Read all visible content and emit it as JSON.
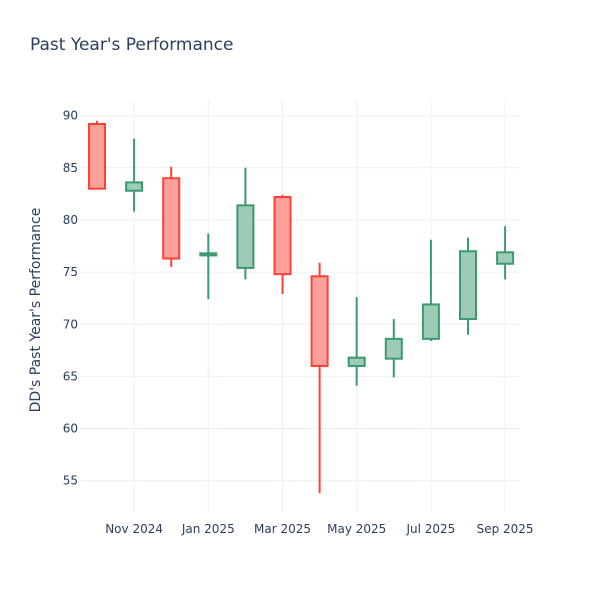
{
  "chart_data": {
    "type": "candlestick",
    "title": "Past Year's Performance",
    "xlabel": "",
    "ylabel": "DD's Past Year's Performance",
    "ylim": [
      52,
      91.5
    ],
    "yticks": [
      55,
      60,
      65,
      70,
      75,
      80,
      85,
      90
    ],
    "xticks": [
      {
        "label": "Nov 2024",
        "index": 1
      },
      {
        "label": "Jan 2025",
        "index": 3
      },
      {
        "label": "Mar 2025",
        "index": 5
      },
      {
        "label": "May 2025",
        "index": 7
      },
      {
        "label": "Jul 2025",
        "index": 9
      },
      {
        "label": "Sep 2025",
        "index": 11
      }
    ],
    "grid": true,
    "colors": {
      "increasing_line": "#3d9970",
      "increasing_fill": "#9ecbb5",
      "decreasing_line": "#ff4136",
      "decreasing_fill": "#ffa09b",
      "grid": "#ebf0f8",
      "text": "#2a3f5f"
    },
    "candles": [
      {
        "period": "Oct 2024",
        "open": 89.2,
        "high": 89.5,
        "low": 83.0,
        "close": 83.0
      },
      {
        "period": "Nov 2024",
        "open": 82.8,
        "high": 87.8,
        "low": 80.8,
        "close": 83.6
      },
      {
        "period": "Dec 2024",
        "open": 84.0,
        "high": 85.1,
        "low": 75.5,
        "close": 76.3
      },
      {
        "period": "Jan 2025",
        "open": 76.6,
        "high": 78.7,
        "low": 72.4,
        "close": 76.8
      },
      {
        "period": "Feb 2025",
        "open": 75.4,
        "high": 85.0,
        "low": 74.3,
        "close": 81.4
      },
      {
        "period": "Mar 2025",
        "open": 82.2,
        "high": 82.4,
        "low": 72.9,
        "close": 74.8
      },
      {
        "period": "Apr 2025",
        "open": 74.6,
        "high": 75.9,
        "low": 53.8,
        "close": 66.0
      },
      {
        "period": "May 2025",
        "open": 66.0,
        "high": 72.6,
        "low": 64.1,
        "close": 66.8
      },
      {
        "period": "Jun 2025",
        "open": 66.7,
        "high": 70.5,
        "low": 64.9,
        "close": 68.6
      },
      {
        "period": "Jul 2025",
        "open": 68.6,
        "high": 78.1,
        "low": 68.4,
        "close": 71.9
      },
      {
        "period": "Aug 2025",
        "open": 70.5,
        "high": 78.3,
        "low": 69.0,
        "close": 77.0
      },
      {
        "period": "Sep 2025",
        "open": 75.8,
        "high": 79.4,
        "low": 74.3,
        "close": 76.9
      }
    ]
  }
}
